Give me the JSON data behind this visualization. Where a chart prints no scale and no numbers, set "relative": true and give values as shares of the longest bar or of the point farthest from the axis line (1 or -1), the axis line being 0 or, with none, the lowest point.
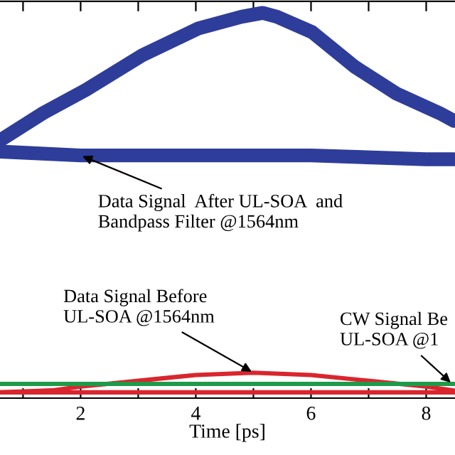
{
  "chart_data": {
    "type": "line",
    "relative": true,
    "xlabel": "Time [ps]",
    "xlim": [
      0.6,
      8.5
    ],
    "xticks": [
      {
        "value": 1,
        "label": null
      },
      2,
      {
        "value": 3,
        "label": null
      },
      4,
      {
        "value": 5,
        "label": null
      },
      6,
      {
        "value": 7,
        "label": null
      },
      8
    ],
    "grid": false,
    "legend": false,
    "marker": "none",
    "line_style": "solid",
    "series": [
      {
        "color": "#2e3d9a",
        "x": [
          0.61,
          1.35,
          2.09,
          3.07,
          4.05,
          4.79,
          5.16,
          5.41,
          6.02,
          6.76,
          7.49,
          8.23,
          8.48
        ],
        "values": [
          0.67,
          0.74,
          0.8,
          0.89,
          0.96,
          0.99,
          1,
          0.99,
          0.95,
          0.86,
          0.79,
          0.74,
          0.72
        ]
      },
      {
        "color": "#2e3d9a",
        "x": [
          0.61,
          2,
          4,
          6,
          8,
          8.48
        ],
        "values": [
          0.64,
          0.63,
          0.63,
          0.63,
          0.62,
          0.62
        ]
      },
      {
        "color": "#d9262e",
        "x": [
          0.61,
          1.5,
          2,
          3,
          4,
          5,
          6,
          7,
          8,
          8.48
        ],
        "values": [
          0.015,
          0.02,
          0.03,
          0.045,
          0.06,
          0.066,
          0.06,
          0.045,
          0.03,
          0.02
        ]
      },
      {
        "color": "#d9262e",
        "x": [
          0.61,
          8.48
        ],
        "values": [
          0.015,
          0.015
        ]
      },
      {
        "color": "#1f9a4a",
        "x": [
          0.61,
          8.48
        ],
        "values": [
          0.037,
          0.037
        ]
      }
    ],
    "annotations": [
      {
        "text": "Data Signal  After UL-SOA  and\nBandpass Filter @1564nm",
        "x": 2,
        "y": 0.63
      },
      {
        "text": "Data Signal Before\nUL-SOA @1564nm",
        "x": 5,
        "y": 0.066
      },
      {
        "text": "CW Signal Be\nUL-SOA @1",
        "x": 8.45,
        "y": 0.037
      }
    ]
  }
}
